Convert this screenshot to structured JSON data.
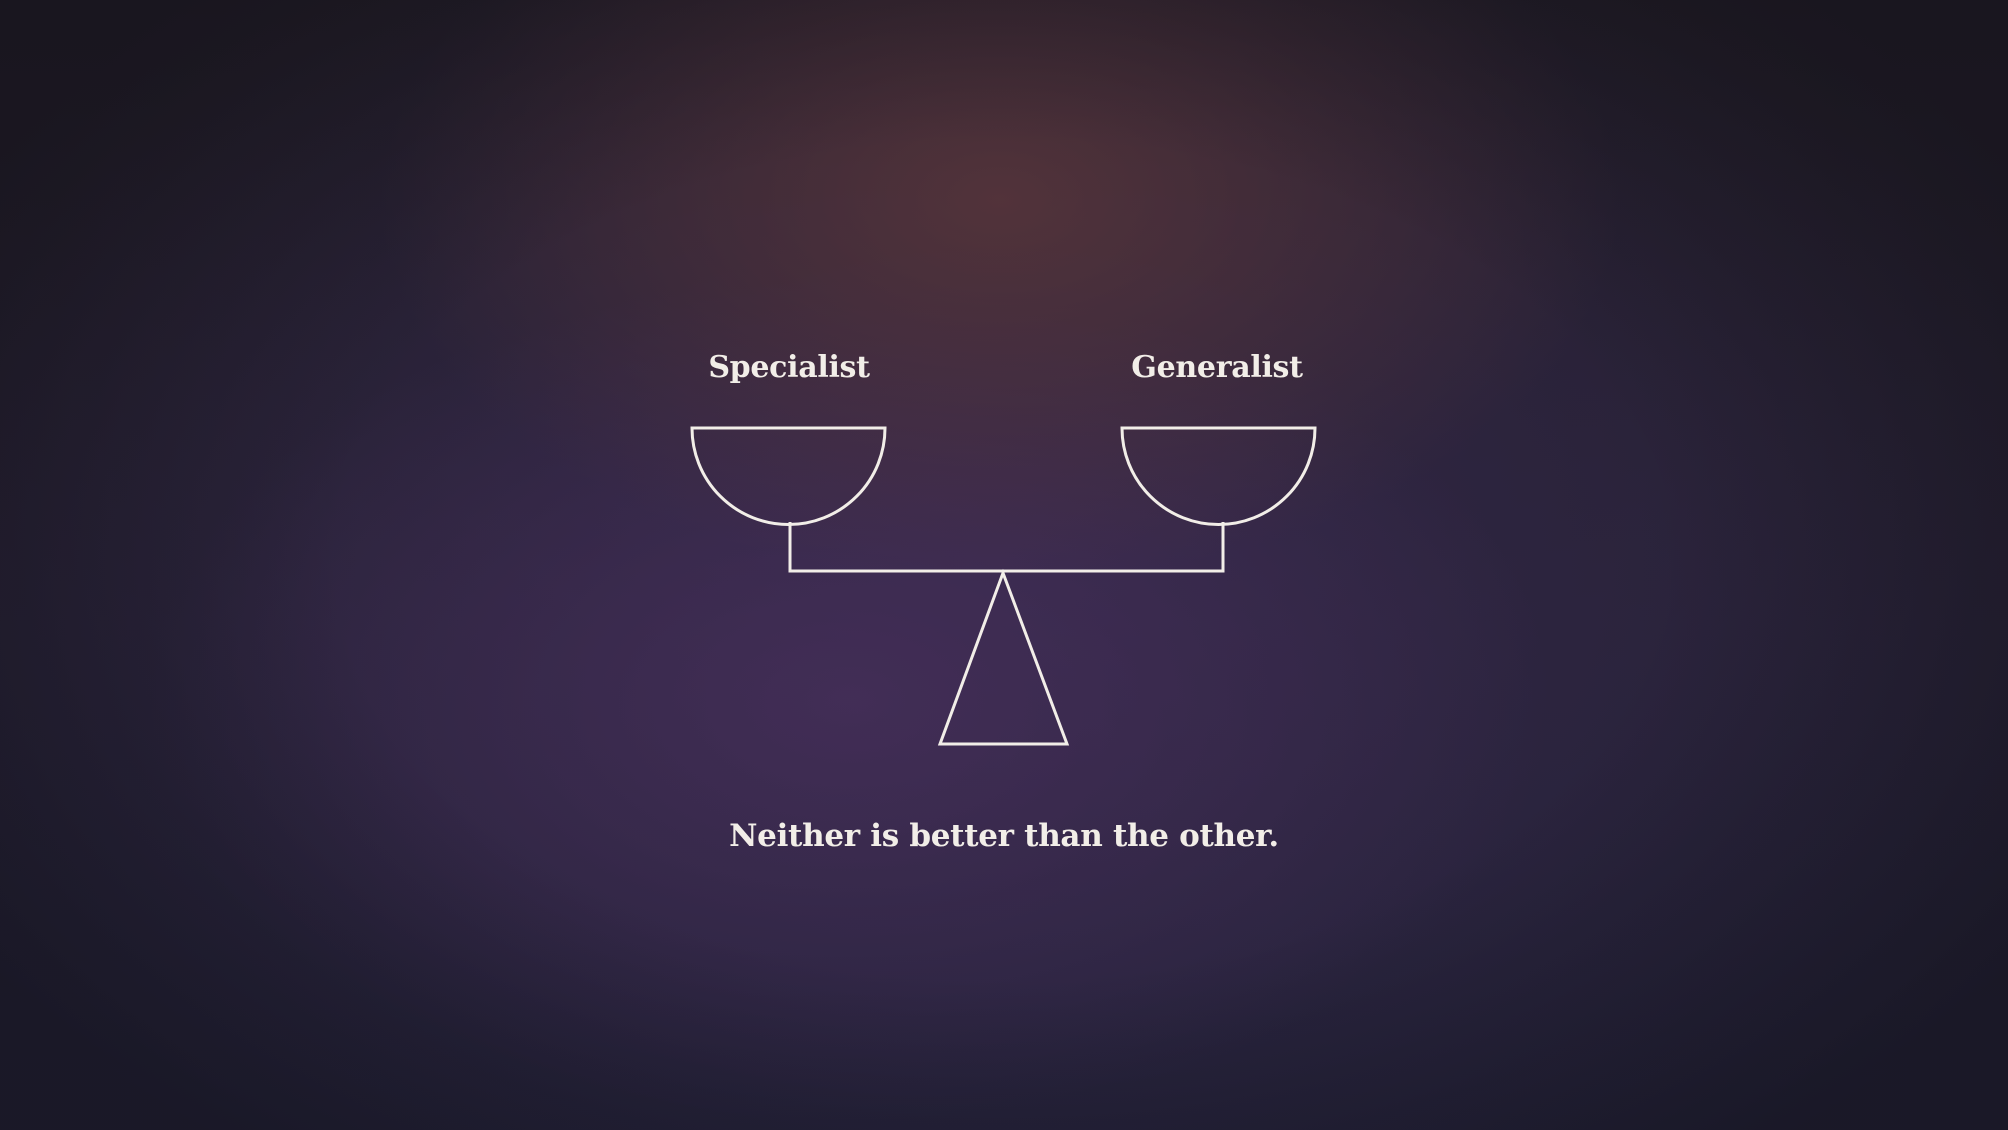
{
  "diagram": {
    "left_pan_label": "Specialist",
    "right_pan_label": "Generalist",
    "caption": "Neither is better than the other.",
    "stroke_color": "#f2eee8",
    "text_color": "#f2eee8"
  }
}
